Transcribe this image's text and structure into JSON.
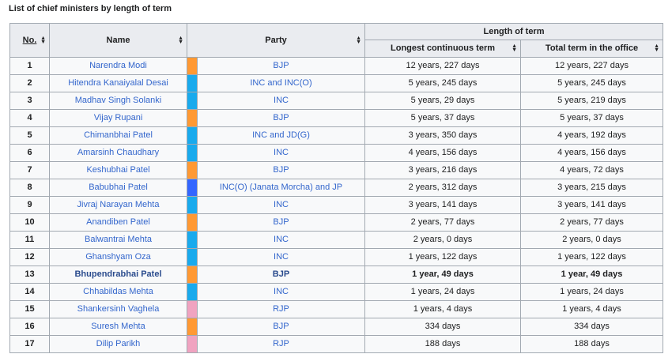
{
  "caption": "List of chief ministers by length of term",
  "headers": {
    "no": "No.",
    "name": "Name",
    "party": "Party",
    "length_group": "Length of term",
    "longest": "Longest continuous term",
    "total": "Total term in the office"
  },
  "colors": {
    "BJP": "#ff9933",
    "INC": "#19aaed",
    "JP": "#3366ff",
    "RJP": "#f0a3c0"
  },
  "rows": [
    {
      "no": "1",
      "name": "Narendra Modi",
      "color": "BJP",
      "party": "BJP",
      "longest": "12 years, 227 days",
      "total": "12 years, 227 days",
      "bold": false
    },
    {
      "no": "2",
      "name": "Hitendra Kanaiyalal Desai",
      "color": "INC",
      "party": "INC and INC(O)",
      "longest": "5 years, 245 days",
      "total": "5 years, 245 days",
      "bold": false
    },
    {
      "no": "3",
      "name": "Madhav Singh Solanki",
      "color": "INC",
      "party": "INC",
      "longest": "5 years, 29 days",
      "total": "5 years, 219 days",
      "bold": false
    },
    {
      "no": "4",
      "name": "Vijay Rupani",
      "color": "BJP",
      "party": "BJP",
      "longest": "5 years, 37 days",
      "total": "5 years, 37 days",
      "bold": false
    },
    {
      "no": "5",
      "name": "Chimanbhai Patel",
      "color": "INC",
      "party": "INC and JD(G)",
      "longest": "3 years, 350 days",
      "total": "4 years, 192 days",
      "bold": false
    },
    {
      "no": "6",
      "name": "Amarsinh Chaudhary",
      "color": "INC",
      "party": "INC",
      "longest": "4 years, 156 days",
      "total": "4 years, 156 days",
      "bold": false
    },
    {
      "no": "7",
      "name": "Keshubhai Patel",
      "color": "BJP",
      "party": "BJP",
      "longest": "3 years, 216 days",
      "total": "4 years, 72 days",
      "bold": false
    },
    {
      "no": "8",
      "name": "Babubhai Patel",
      "color": "JP",
      "party": "INC(O) (Janata Morcha) and JP",
      "longest": "2 years, 312 days",
      "total": "3 years, 215 days",
      "bold": false
    },
    {
      "no": "9",
      "name": "Jivraj Narayan Mehta",
      "color": "INC",
      "party": "INC",
      "longest": "3 years, 141 days",
      "total": "3 years, 141 days",
      "bold": false
    },
    {
      "no": "10",
      "name": "Anandiben Patel",
      "color": "BJP",
      "party": "BJP",
      "longest": "2 years, 77 days",
      "total": "2 years, 77 days",
      "bold": false
    },
    {
      "no": "11",
      "name": "Balwantrai Mehta",
      "color": "INC",
      "party": "INC",
      "longest": "2 years, 0 days",
      "total": "2 years, 0 days",
      "bold": false
    },
    {
      "no": "12",
      "name": "Ghanshyam Oza",
      "color": "INC",
      "party": "INC",
      "longest": "1 years, 122 days",
      "total": "1 years, 122 days",
      "bold": false
    },
    {
      "no": "13",
      "name": "Bhupendrabhai Patel",
      "color": "BJP",
      "party": "BJP",
      "longest": "1 year, 49 days",
      "total": "1 year, 49 days",
      "bold": true
    },
    {
      "no": "14",
      "name": "Chhabildas Mehta",
      "color": "INC",
      "party": "INC",
      "longest": "1 years, 24 days",
      "total": "1 years, 24 days",
      "bold": false
    },
    {
      "no": "15",
      "name": "Shankersinh Vaghela",
      "color": "RJP",
      "party": "RJP",
      "longest": "1 years, 4 days",
      "total": "1 years, 4 days",
      "bold": false
    },
    {
      "no": "16",
      "name": "Suresh Mehta",
      "color": "BJP",
      "party": "BJP",
      "longest": "334 days",
      "total": "334 days",
      "bold": false
    },
    {
      "no": "17",
      "name": "Dilip Parikh",
      "color": "RJP",
      "party": "RJP",
      "longest": "188 days",
      "total": "188 days",
      "bold": false
    }
  ]
}
